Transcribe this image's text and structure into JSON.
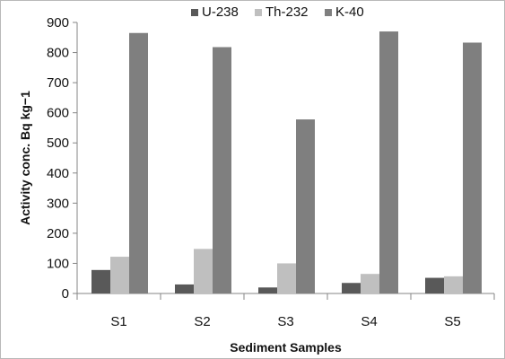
{
  "chart_data": {
    "type": "bar",
    "title": "",
    "xlabel": "Sediment Samples",
    "ylabel": "Activity conc. Bq kg−1",
    "categories": [
      "S1",
      "S2",
      "S3",
      "S4",
      "S5"
    ],
    "series": [
      {
        "name": "U-238",
        "color": "#595959",
        "values": [
          78,
          30,
          20,
          35,
          52
        ]
      },
      {
        "name": "Th-232",
        "color": "#bfbfbf",
        "values": [
          122,
          148,
          100,
          65,
          57
        ]
      },
      {
        "name": "K-40",
        "color": "#7f7f7f",
        "values": [
          865,
          818,
          578,
          870,
          833
        ]
      }
    ],
    "ylim": [
      0,
      900
    ],
    "yticks": [
      "0",
      "100",
      "200",
      "300",
      "400",
      "500",
      "600",
      "700",
      "800",
      "900"
    ],
    "grid": false,
    "legend_position": "top"
  }
}
